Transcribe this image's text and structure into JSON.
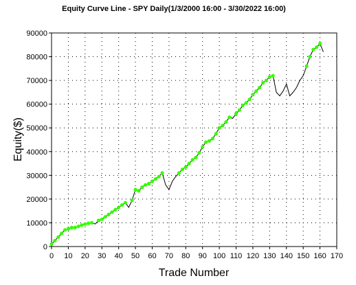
{
  "chart_data": {
    "type": "line",
    "title": "Equity Curve Line - SPY Daily(1/3/2000 16:00 - 3/30/2022 16:00)",
    "xlabel": "Trade Number",
    "ylabel": "Equity($)",
    "xlim": [
      0,
      170
    ],
    "ylim": [
      0,
      90000
    ],
    "xticks": [
      0,
      10,
      20,
      30,
      40,
      50,
      60,
      70,
      80,
      90,
      100,
      110,
      120,
      130,
      140,
      150,
      160,
      170
    ],
    "yticks": [
      0,
      10000,
      20000,
      30000,
      40000,
      50000,
      60000,
      70000,
      80000,
      90000
    ],
    "grid": true,
    "legend": "none",
    "colors": {
      "line": "#000000",
      "marker": "#33ff00"
    },
    "series": [
      {
        "x": [
          0,
          2,
          4,
          6,
          8,
          10,
          12,
          14,
          16,
          18,
          20,
          22,
          24,
          26,
          28,
          30,
          32,
          34,
          36,
          38,
          40,
          42,
          44,
          46,
          48,
          50,
          52,
          54,
          56,
          58,
          60,
          62,
          64,
          66,
          68,
          70,
          72,
          74,
          76,
          78,
          80,
          82,
          84,
          86,
          88,
          90,
          92,
          94,
          96,
          98,
          100,
          102,
          104,
          106,
          108,
          110,
          112,
          114,
          116,
          118,
          120,
          122,
          124,
          126,
          128,
          130,
          132,
          134,
          136,
          138,
          140,
          142,
          144,
          146,
          148,
          150,
          152,
          154,
          156,
          158,
          160,
          162
        ],
        "y": [
          1000,
          2500,
          4000,
          5500,
          7000,
          7500,
          8000,
          8000,
          8500,
          9000,
          9500,
          9800,
          10000,
          9500,
          11000,
          11500,
          12500,
          13500,
          14500,
          15500,
          16500,
          17500,
          18500,
          16500,
          19500,
          24000,
          23500,
          25000,
          26000,
          26500,
          27500,
          28500,
          29500,
          31000,
          26000,
          24000,
          27500,
          29500,
          31000,
          32500,
          33500,
          35000,
          36500,
          37500,
          39500,
          42000,
          44000,
          44500,
          45500,
          47500,
          50000,
          51000,
          52500,
          54500,
          54000,
          56000,
          57500,
          59500,
          60500,
          62000,
          64000,
          65500,
          67000,
          69000,
          70000,
          71500,
          72000,
          65000,
          63500,
          65500,
          68500,
          63500,
          65000,
          67000,
          70000,
          72000,
          76000,
          80000,
          83000,
          84000,
          85500,
          82000
        ],
        "markers": [
          1,
          1,
          1,
          1,
          1,
          1,
          1,
          1,
          1,
          1,
          1,
          1,
          1,
          0,
          1,
          1,
          1,
          1,
          1,
          1,
          1,
          1,
          1,
          0,
          1,
          1,
          1,
          1,
          1,
          1,
          1,
          1,
          1,
          1,
          0,
          0,
          0,
          0,
          1,
          1,
          1,
          1,
          1,
          1,
          1,
          1,
          1,
          1,
          1,
          1,
          1,
          1,
          1,
          1,
          0,
          1,
          1,
          1,
          1,
          1,
          1,
          1,
          1,
          1,
          1,
          1,
          1,
          0,
          0,
          0,
          0,
          0,
          0,
          0,
          0,
          0,
          1,
          1,
          1,
          1,
          1,
          0
        ]
      }
    ]
  }
}
